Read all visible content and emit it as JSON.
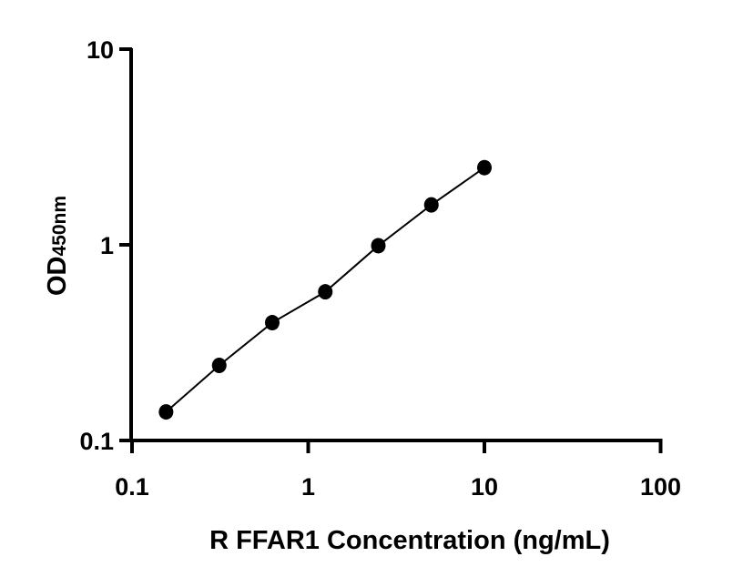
{
  "chart_data": {
    "type": "scatter",
    "xlabel": "R FFAR1 Concentration (ng/mL)",
    "ylabel": "OD",
    "ylabel_subscript": "450nm",
    "xscale": "log",
    "yscale": "log",
    "xlim": [
      0.1,
      100
    ],
    "ylim": [
      0.1,
      10
    ],
    "xticks": [
      "0.1",
      "1",
      "10",
      "100"
    ],
    "yticks": [
      "0.1",
      "1",
      "10"
    ],
    "grid": false,
    "legend": "none",
    "marker_color": "#000000",
    "line": "connecting fit line",
    "series": [
      {
        "x": [
          0.156,
          0.3125,
          0.625,
          1.25,
          2.5,
          5,
          10
        ],
        "y": [
          0.14,
          0.242,
          0.4,
          0.575,
          0.99,
          1.6,
          2.48
        ]
      }
    ]
  }
}
